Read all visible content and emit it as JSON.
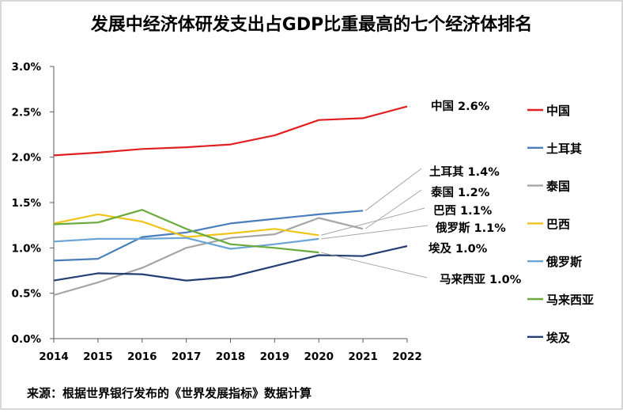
{
  "chart_data": {
    "type": "line",
    "title": "发展中经济体研发支出占GDP比重最高的七个经济体排名",
    "source": "来源：根据世界银行发布的《世界发展指标》数据计算",
    "xlabel": "",
    "ylabel": "",
    "x": [
      "2014",
      "2015",
      "2016",
      "2017",
      "2018",
      "2019",
      "2020",
      "2021",
      "2022"
    ],
    "ylim": [
      0,
      3.0
    ],
    "yticks": [
      "0.0%",
      "0.5%",
      "1.0%",
      "1.5%",
      "2.0%",
      "2.5%",
      "3.0%"
    ],
    "legend_position": "right",
    "series": [
      {
        "name": "中国",
        "color": "#e02020",
        "values": [
          2.02,
          2.05,
          2.09,
          2.11,
          2.14,
          2.24,
          2.41,
          2.43,
          2.56
        ],
        "label": "中国 2.6%"
      },
      {
        "name": "土耳其",
        "color": "#4a7ebb",
        "values": [
          0.86,
          0.88,
          1.12,
          1.17,
          1.27,
          1.32,
          1.37,
          1.41,
          null
        ],
        "label": "土耳其 1.4%"
      },
      {
        "name": "泰国",
        "color": "#a5a5a5",
        "values": [
          0.48,
          0.62,
          0.78,
          1.0,
          1.11,
          1.15,
          1.33,
          1.21,
          null
        ],
        "label": "泰国 1.2%"
      },
      {
        "name": "巴西",
        "color": "#f0c419",
        "values": [
          1.27,
          1.37,
          1.29,
          1.12,
          1.16,
          1.21,
          1.14,
          null,
          null
        ],
        "label": "巴西 1.1%"
      },
      {
        "name": "俄罗斯",
        "color": "#6ba5d6",
        "values": [
          1.07,
          1.1,
          1.1,
          1.11,
          0.99,
          1.04,
          1.1,
          null,
          null
        ],
        "label": "俄罗斯 1.1%"
      },
      {
        "name": "马来西亚",
        "color": "#6aaa3c",
        "values": [
          1.26,
          1.28,
          1.42,
          1.21,
          1.04,
          1.0,
          0.95,
          null,
          null
        ],
        "label": "马来西亚 1.0%"
      },
      {
        "name": "埃及",
        "color": "#243f73",
        "values": [
          0.64,
          0.72,
          0.71,
          0.64,
          0.68,
          0.8,
          0.92,
          0.91,
          1.02
        ],
        "label": "埃及 1.0%"
      }
    ]
  }
}
